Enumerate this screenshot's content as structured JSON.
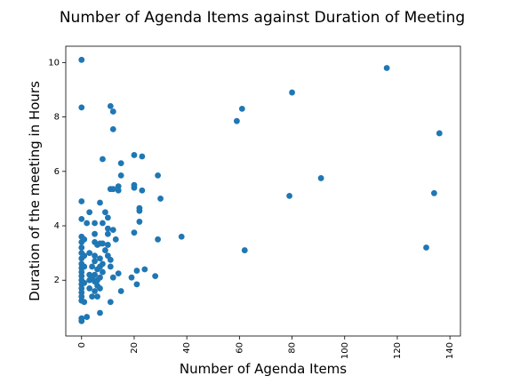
{
  "chart_data": {
    "type": "scatter",
    "title": "Number of Agenda Items against Duration of Meeting",
    "xlabel": "Number of Agenda Items",
    "ylabel": "Duration of the meeting in Hours",
    "xlim": [
      -6,
      144
    ],
    "ylim": [
      -0.05,
      10.6
    ],
    "xticks": [
      0,
      20,
      40,
      60,
      80,
      100,
      120,
      140
    ],
    "yticks": [
      2,
      4,
      6,
      8,
      10
    ],
    "xtick_rotation": 90,
    "grid": false,
    "marker_color": "#1f77b4",
    "points": [
      {
        "x": 0,
        "y": 10.1
      },
      {
        "x": 0,
        "y": 8.35
      },
      {
        "x": 0,
        "y": 4.9
      },
      {
        "x": 0,
        "y": 4.25
      },
      {
        "x": 0,
        "y": 3.6
      },
      {
        "x": 0,
        "y": 3.4
      },
      {
        "x": 0,
        "y": 3.2
      },
      {
        "x": 0,
        "y": 3.0
      },
      {
        "x": 0,
        "y": 2.8
      },
      {
        "x": 0,
        "y": 2.6
      },
      {
        "x": 0,
        "y": 2.45
      },
      {
        "x": 0,
        "y": 2.3
      },
      {
        "x": 0,
        "y": 2.15
      },
      {
        "x": 0,
        "y": 2.0
      },
      {
        "x": 0,
        "y": 1.85
      },
      {
        "x": 0,
        "y": 1.7
      },
      {
        "x": 0,
        "y": 1.55
      },
      {
        "x": 0,
        "y": 1.4
      },
      {
        "x": 0,
        "y": 1.25
      },
      {
        "x": 0,
        "y": 0.6
      },
      {
        "x": 0,
        "y": 0.5
      },
      {
        "x": 1,
        "y": 3.5
      },
      {
        "x": 1,
        "y": 2.9
      },
      {
        "x": 1,
        "y": 2.5
      },
      {
        "x": 1,
        "y": 1.9
      },
      {
        "x": 1,
        "y": 1.2
      },
      {
        "x": 2,
        "y": 0.65
      },
      {
        "x": 2,
        "y": 4.1
      },
      {
        "x": 3,
        "y": 4.5
      },
      {
        "x": 3,
        "y": 3.0
      },
      {
        "x": 3,
        "y": 2.2
      },
      {
        "x": 3,
        "y": 2.0
      },
      {
        "x": 3,
        "y": 1.7
      },
      {
        "x": 4,
        "y": 2.5
      },
      {
        "x": 4,
        "y": 2.1
      },
      {
        "x": 4,
        "y": 1.4
      },
      {
        "x": 5,
        "y": 4.1
      },
      {
        "x": 5,
        "y": 3.7
      },
      {
        "x": 5,
        "y": 3.4
      },
      {
        "x": 5,
        "y": 2.9
      },
      {
        "x": 5,
        "y": 2.7
      },
      {
        "x": 5,
        "y": 2.2
      },
      {
        "x": 5,
        "y": 1.95
      },
      {
        "x": 5,
        "y": 1.6
      },
      {
        "x": 6,
        "y": 3.3
      },
      {
        "x": 6,
        "y": 2.4
      },
      {
        "x": 6,
        "y": 2.0
      },
      {
        "x": 6,
        "y": 1.8
      },
      {
        "x": 6,
        "y": 1.4
      },
      {
        "x": 7,
        "y": 4.85
      },
      {
        "x": 7,
        "y": 3.35
      },
      {
        "x": 7,
        "y": 2.8
      },
      {
        "x": 7,
        "y": 2.5
      },
      {
        "x": 7,
        "y": 2.1
      },
      {
        "x": 7,
        "y": 1.7
      },
      {
        "x": 7,
        "y": 0.8
      },
      {
        "x": 8,
        "y": 6.45
      },
      {
        "x": 8,
        "y": 4.1
      },
      {
        "x": 8,
        "y": 3.35
      },
      {
        "x": 8,
        "y": 2.6
      },
      {
        "x": 8,
        "y": 2.3
      },
      {
        "x": 9,
        "y": 4.5
      },
      {
        "x": 9,
        "y": 3.1
      },
      {
        "x": 10,
        "y": 4.3
      },
      {
        "x": 10,
        "y": 3.9
      },
      {
        "x": 10,
        "y": 3.7
      },
      {
        "x": 10,
        "y": 3.3
      },
      {
        "x": 10,
        "y": 2.9
      },
      {
        "x": 11,
        "y": 8.4
      },
      {
        "x": 11,
        "y": 5.35
      },
      {
        "x": 11,
        "y": 2.75
      },
      {
        "x": 11,
        "y": 2.5
      },
      {
        "x": 11,
        "y": 1.2
      },
      {
        "x": 12,
        "y": 8.2
      },
      {
        "x": 12,
        "y": 7.55
      },
      {
        "x": 12,
        "y": 5.35
      },
      {
        "x": 12,
        "y": 3.85
      },
      {
        "x": 12,
        "y": 2.1
      },
      {
        "x": 13,
        "y": 3.5
      },
      {
        "x": 14,
        "y": 5.45
      },
      {
        "x": 14,
        "y": 5.3
      },
      {
        "x": 14,
        "y": 2.25
      },
      {
        "x": 15,
        "y": 6.3
      },
      {
        "x": 15,
        "y": 5.85
      },
      {
        "x": 15,
        "y": 1.6
      },
      {
        "x": 19,
        "y": 2.1
      },
      {
        "x": 20,
        "y": 6.6
      },
      {
        "x": 20,
        "y": 5.5
      },
      {
        "x": 20,
        "y": 5.4
      },
      {
        "x": 20,
        "y": 3.75
      },
      {
        "x": 21,
        "y": 2.35
      },
      {
        "x": 21,
        "y": 1.85
      },
      {
        "x": 22,
        "y": 4.65
      },
      {
        "x": 22,
        "y": 4.55
      },
      {
        "x": 22,
        "y": 4.15
      },
      {
        "x": 23,
        "y": 6.55
      },
      {
        "x": 23,
        "y": 5.3
      },
      {
        "x": 24,
        "y": 2.4
      },
      {
        "x": 28,
        "y": 2.15
      },
      {
        "x": 29,
        "y": 5.85
      },
      {
        "x": 29,
        "y": 3.5
      },
      {
        "x": 30,
        "y": 5.0
      },
      {
        "x": 38,
        "y": 3.6
      },
      {
        "x": 59,
        "y": 7.85
      },
      {
        "x": 61,
        "y": 8.3
      },
      {
        "x": 62,
        "y": 3.1
      },
      {
        "x": 79,
        "y": 5.1
      },
      {
        "x": 80,
        "y": 8.9
      },
      {
        "x": 91,
        "y": 5.75
      },
      {
        "x": 116,
        "y": 9.8
      },
      {
        "x": 131,
        "y": 3.2
      },
      {
        "x": 134,
        "y": 5.2
      },
      {
        "x": 136,
        "y": 7.4
      }
    ]
  }
}
